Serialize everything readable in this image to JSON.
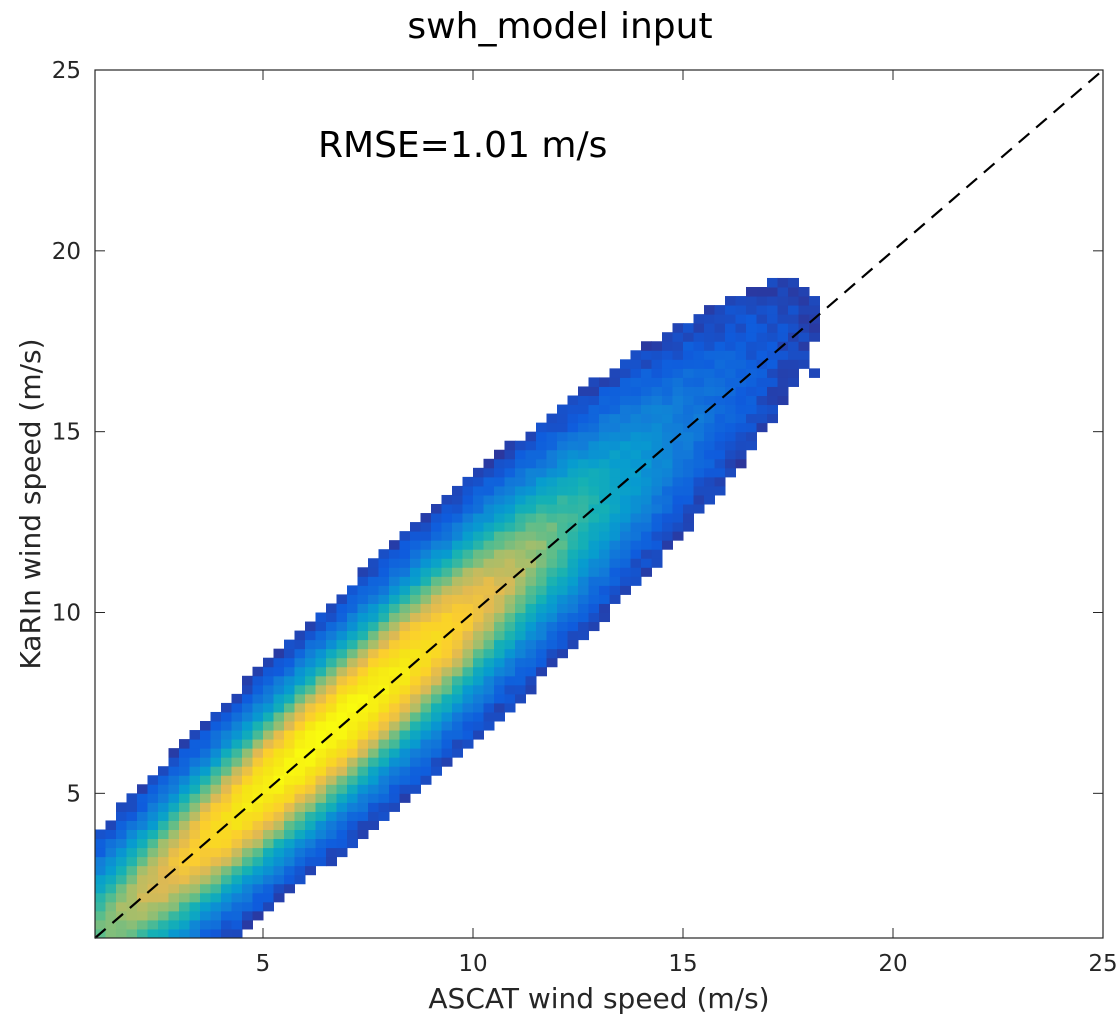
{
  "chart_data": {
    "type": "heatmap",
    "title": "swh_model input",
    "xlabel": "ASCAT wind speed (m/s)",
    "ylabel": "KaRIn wind speed (m/s)",
    "xlim": [
      1,
      25
    ],
    "ylim": [
      1,
      25
    ],
    "xticks": [
      5,
      10,
      15,
      20,
      25
    ],
    "yticks": [
      5,
      10,
      15,
      20,
      25
    ],
    "xtick_labels": [
      "5",
      "10",
      "15",
      "20",
      "25"
    ],
    "ytick_labels": [
      "5",
      "10",
      "15",
      "20",
      "25"
    ],
    "annotation": "RMSE=1.01 m/s",
    "reference_line": {
      "style": "dashed",
      "color": "#000000",
      "x": [
        1,
        25
      ],
      "y": [
        1,
        25
      ]
    },
    "colormap": "parula",
    "bin_size_ms": 0.25,
    "density_model": {
      "ridge_slope": 1.0,
      "ridge_intercept": 0.1,
      "core_peak_x": 6.5,
      "spread_ms": 1.1
    },
    "grid": false,
    "box": true
  }
}
